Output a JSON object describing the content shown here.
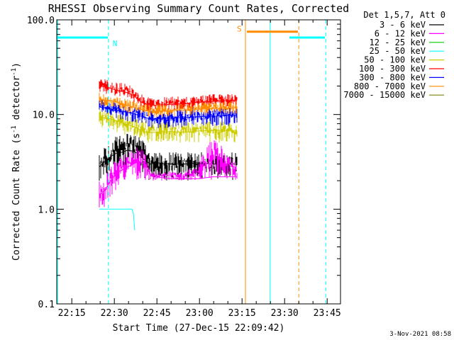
{
  "chart_data": {
    "type": "line",
    "title": "RHESSI Observing Summary Count Rates, Corrected",
    "xlabel": "Start Time (27-Dec-15 22:09:42)",
    "ylabel_main": "Corrected Count Rate (s",
    "ylabel_sup1": "-1",
    "ylabel_mid": " detector",
    "ylabel_sup2": "-1",
    "ylabel_end": ")",
    "y_scale": "log",
    "ylim": [
      0.1,
      100
    ],
    "xlim_minutes": [
      0,
      100
    ],
    "x_ticks": [
      {
        "minute": 5.3,
        "label": "22:15"
      },
      {
        "minute": 20.3,
        "label": "22:30"
      },
      {
        "minute": 35.3,
        "label": "22:45"
      },
      {
        "minute": 50.3,
        "label": "23:00"
      },
      {
        "minute": 65.3,
        "label": "23:15"
      },
      {
        "minute": 80.3,
        "label": "23:30"
      },
      {
        "minute": 95.3,
        "label": "23:45"
      }
    ],
    "y_ticks": [
      {
        "value": 100,
        "label": "100.0"
      },
      {
        "value": 10,
        "label": "10.0"
      },
      {
        "value": 1,
        "label": "1.0"
      },
      {
        "value": 0.1,
        "label": "0.1"
      }
    ],
    "legend_header": "Det 1,5,7, Att 0",
    "legend_placement": "right",
    "series": [
      {
        "name": "3 - 6 keV",
        "color": "#000000",
        "x": [
          15,
          17,
          19,
          21,
          23,
          25,
          27,
          29,
          31,
          33,
          35,
          40,
          45,
          50,
          55,
          60,
          63.5
        ],
        "y": [
          2.8,
          3.2,
          3.6,
          3.9,
          4.0,
          4.2,
          4.1,
          3.8,
          3.3,
          3.0,
          3.1,
          3.0,
          3.0,
          3.1,
          3.0,
          3.0,
          3.0
        ],
        "lo": [
          2.0,
          2.2,
          2.5,
          2.8,
          2.6,
          3.0,
          3.0,
          3.0,
          2.0,
          2.0,
          2.0,
          2.0,
          2.0,
          2.0,
          2.0,
          2.0,
          2.0
        ],
        "hi": [
          4.0,
          4.5,
          5.0,
          6.0,
          6.0,
          6.5,
          6.0,
          6.0,
          5.0,
          4.0,
          4.0,
          4.0,
          4.0,
          4.0,
          4.0,
          4.0,
          4.0
        ]
      },
      {
        "name": "6 - 12 keV",
        "color": "#ff00ff",
        "x": [
          15,
          17,
          19,
          21,
          23,
          25,
          27,
          29,
          31,
          33,
          35,
          40,
          45,
          50,
          55,
          60,
          63.5
        ],
        "y": [
          1.4,
          1.6,
          2.0,
          2.4,
          2.6,
          2.8,
          3.0,
          3.2,
          3.0,
          2.3,
          2.2,
          2.1,
          2.1,
          2.1,
          2.2,
          2.2,
          2.2
        ],
        "lo": [
          1.0,
          1.0,
          1.3,
          1.6,
          2.0,
          2.0,
          2.0,
          2.0,
          2.0,
          2.0,
          2.0,
          2.0,
          2.0,
          2.0,
          2.0,
          2.0,
          2.0
        ],
        "hi": [
          2.0,
          2.2,
          2.8,
          3.4,
          3.6,
          4.0,
          4.5,
          5.0,
          4.0,
          2.5,
          2.5,
          2.5,
          2.5,
          3.0,
          6.0,
          4.0,
          3.0
        ]
      },
      {
        "name": "12 - 25 keV",
        "color": "#00cc00",
        "x": [],
        "y": []
      },
      {
        "name": "25 - 50 keV",
        "color": "#00ffff",
        "x": [
          15,
          18,
          21,
          24,
          26.5,
          27,
          27.5
        ],
        "y": [
          1.0,
          1.0,
          1.0,
          1.0,
          1.0,
          0.9,
          0.6
        ]
      },
      {
        "name": "50 - 100 keV",
        "color": "#cccc00",
        "x": [
          15,
          17,
          19,
          21,
          23,
          25,
          27,
          29,
          31,
          33,
          35,
          40,
          45,
          50,
          55,
          60,
          63.5
        ],
        "y": [
          9.5,
          9.2,
          9.0,
          8.6,
          8.2,
          7.8,
          7.5,
          7.0,
          6.5,
          6.4,
          6.5,
          6.6,
          6.5,
          6.7,
          6.8,
          6.8,
          6.8
        ],
        "lo": [
          7.5,
          7.0,
          7.0,
          6.5,
          6.0,
          6.0,
          5.5,
          5.5,
          5.0,
          5.0,
          5.0,
          5.0,
          5.0,
          5.0,
          5.0,
          5.0,
          5.0
        ],
        "hi": [
          12,
          11.5,
          11,
          10.5,
          10,
          9.5,
          9.5,
          9,
          8.5,
          8.5,
          8.5,
          8.5,
          8.5,
          8.5,
          8.5,
          8.5,
          8.5
        ]
      },
      {
        "name": "100 - 300 keV",
        "color": "#ff0000",
        "x": [
          15,
          17,
          19,
          21,
          23,
          25,
          27,
          29,
          31,
          33,
          35,
          40,
          45,
          50,
          55,
          60,
          63.5
        ],
        "y": [
          20,
          19.5,
          19,
          18,
          17.5,
          17,
          16,
          14,
          13,
          12.5,
          12.5,
          12.8,
          13,
          13.5,
          13.8,
          14,
          14
        ],
        "lo": [
          17,
          16.5,
          16,
          15.5,
          15,
          14.5,
          13.5,
          12,
          11,
          10.5,
          10.5,
          11,
          11,
          11.5,
          12,
          12,
          12
        ],
        "hi": [
          24,
          23.5,
          23,
          22,
          21.5,
          21,
          19,
          17,
          15.5,
          15,
          15,
          15.5,
          15.5,
          16,
          16.5,
          16.5,
          16.5
        ]
      },
      {
        "name": "300 - 800 keV",
        "color": "#0000ff",
        "x": [
          15,
          17,
          19,
          21,
          23,
          25,
          27,
          29,
          31,
          33,
          35,
          40,
          45,
          50,
          55,
          60,
          63.5
        ],
        "y": [
          12,
          11.8,
          11.5,
          11,
          10.8,
          10.5,
          10.2,
          9.8,
          9.3,
          9.0,
          9.0,
          9.2,
          9.3,
          9.5,
          9.6,
          9.8,
          9.8
        ],
        "lo": [
          10,
          9.8,
          9.5,
          9,
          8.8,
          8.5,
          8.2,
          7.8,
          7.5,
          7.2,
          7.2,
          7.2,
          7.3,
          7.5,
          7.5,
          7.6,
          7.6
        ],
        "hi": [
          14.5,
          14.2,
          14,
          13.5,
          13.2,
          13,
          12.5,
          12,
          11.5,
          11,
          11,
          11.2,
          11.5,
          11.8,
          12,
          12.2,
          12.2
        ]
      },
      {
        "name": "800 - 7000 keV",
        "color": "#ff8c00",
        "x": [
          15,
          17,
          19,
          21,
          23,
          25,
          27,
          29,
          31,
          33,
          35,
          40,
          45,
          50,
          55,
          60,
          63.5
        ],
        "y": [
          14.5,
          14.2,
          14,
          13.5,
          13,
          12.5,
          12,
          11.5,
          11,
          10.8,
          10.8,
          11,
          11.2,
          11.4,
          11.6,
          11.8,
          11.8
        ],
        "lo": [
          12.5,
          12.2,
          12,
          11.5,
          11,
          10.5,
          10.2,
          9.8,
          9.5,
          9.3,
          9.3,
          9.5,
          9.6,
          9.8,
          10,
          10,
          10
        ],
        "hi": [
          17,
          16.5,
          16,
          15.5,
          15,
          14.5,
          14,
          13.5,
          13,
          12.8,
          12.8,
          13,
          13.2,
          13.4,
          13.6,
          13.8,
          13.8
        ]
      },
      {
        "name": "7000 - 15000 keV",
        "color": "#808000",
        "x": [],
        "y": []
      }
    ],
    "indicators": [
      {
        "label": "N",
        "color": "#00ffff",
        "segments": [
          [
            0,
            18
          ],
          [
            82,
            94.5
          ]
        ],
        "level": 65,
        "markers": [
          {
            "minute": 18.2,
            "style": "dashed"
          },
          {
            "minute": 94.8,
            "style": "dashed"
          },
          {
            "minute": 0.3,
            "style": "solid"
          },
          {
            "minute": 75.2,
            "style": "solid"
          }
        ]
      },
      {
        "label": "S",
        "color": "#ff8c00",
        "segments": [
          [
            67,
            85
          ]
        ],
        "level": 75,
        "markers": [
          {
            "minute": 66.5,
            "style": "solid"
          },
          {
            "minute": 85.3,
            "style": "dashed"
          }
        ]
      }
    ],
    "grid": false,
    "footer_date": "3-Nov-2021 08:58"
  }
}
